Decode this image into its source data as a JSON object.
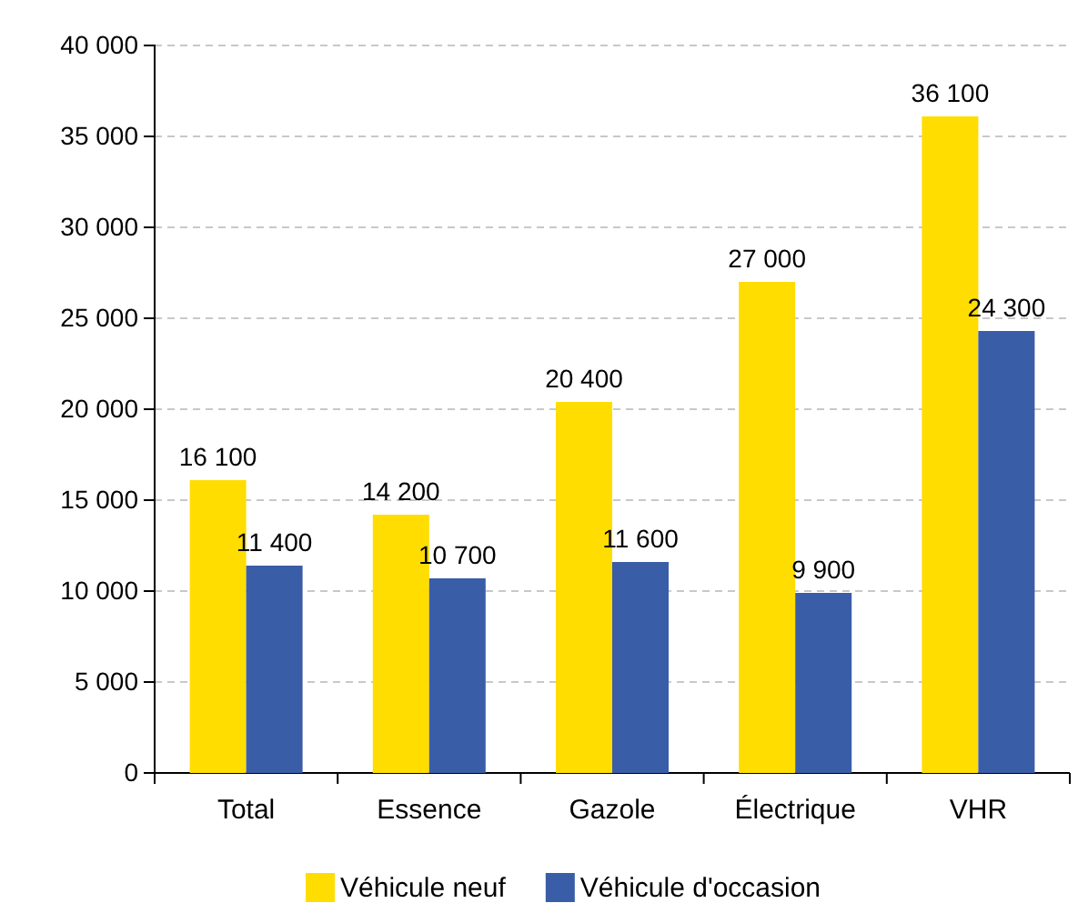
{
  "chart_data": {
    "type": "bar",
    "categories": [
      "Total",
      "Essence",
      "Gazole",
      "Électrique",
      "VHR"
    ],
    "series": [
      {
        "name": "Véhicule neuf",
        "color": "#ffdd00",
        "values": [
          16100,
          14200,
          20400,
          27000,
          36100
        ]
      },
      {
        "name": "Véhicule d'occasion",
        "color": "#3a5da8",
        "values": [
          11400,
          10700,
          11600,
          9900,
          24300
        ]
      }
    ],
    "ylim": [
      0,
      40000
    ],
    "yticks": [
      {
        "value": 0,
        "label": "0"
      },
      {
        "value": 5000,
        "label": "5 000"
      },
      {
        "value": 10000,
        "label": "10 000"
      },
      {
        "value": 15000,
        "label": "15 000"
      },
      {
        "value": 20000,
        "label": "20 000"
      },
      {
        "value": 25000,
        "label": "25 000"
      },
      {
        "value": 30000,
        "label": "30 000"
      },
      {
        "value": 35000,
        "label": "35 000"
      },
      {
        "value": 40000,
        "label": "40 000"
      }
    ],
    "grid": "y",
    "legend": "bottom",
    "data_labels": true
  }
}
